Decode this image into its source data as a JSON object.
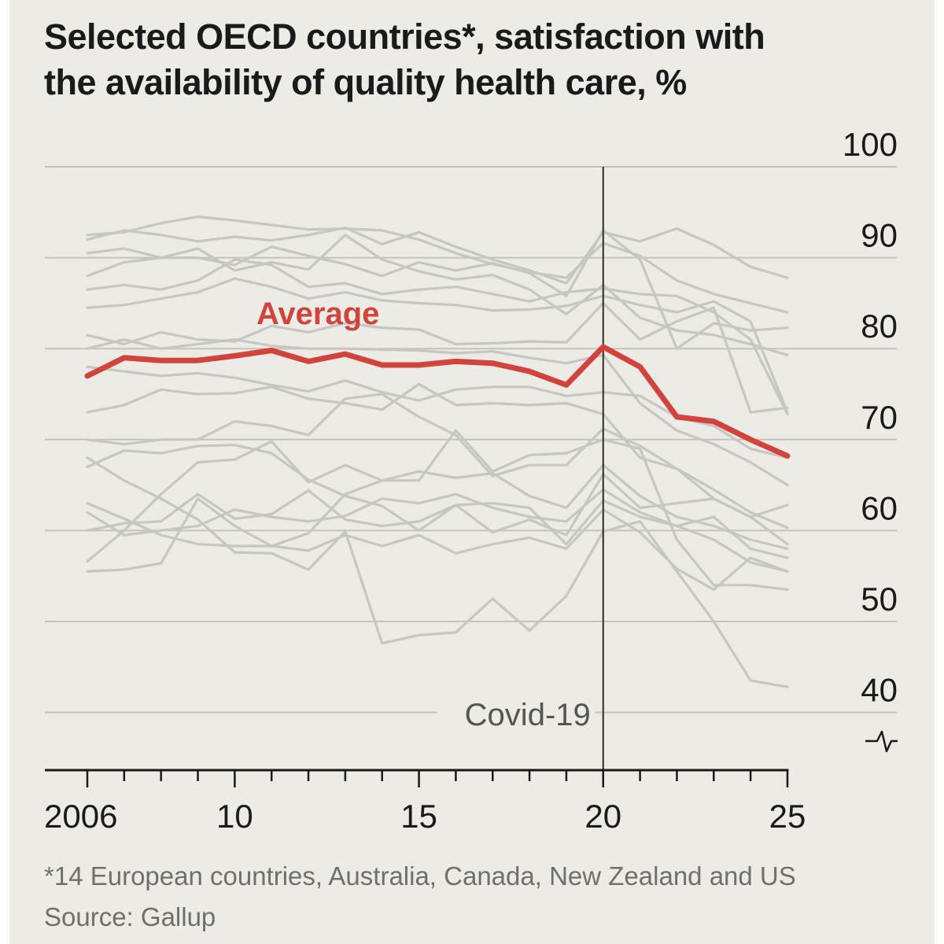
{
  "title": {
    "line1": "Selected OECD countries*, satisfaction with",
    "line2": "the availability of quality health care, %"
  },
  "footnote": {
    "note": "*14 European countries, Australia, Canada, New Zealand and US",
    "source": "Source: Gallup"
  },
  "colors": {
    "background": "#ecebe6",
    "average": "#d2433c",
    "countries": "#c6c6c3",
    "grid": "#c4c3be",
    "axis": "#1a1a1a"
  },
  "chart_data": {
    "type": "line",
    "title": "Selected OECD countries*, satisfaction with the availability of quality health care, %",
    "x": [
      2006,
      2007,
      2008,
      2009,
      2010,
      2011,
      2012,
      2013,
      2014,
      2015,
      2016,
      2017,
      2018,
      2019,
      2020,
      2021,
      2022,
      2023,
      2024,
      2025
    ],
    "x_tick_labels": [
      "2006",
      "10",
      "15",
      "20",
      "25"
    ],
    "x_tick_values": [
      2006,
      2010,
      2015,
      2020,
      2025
    ],
    "y_tick_labels": [
      "100",
      "90",
      "80",
      "70",
      "60",
      "50",
      "40"
    ],
    "y_tick_values": [
      100,
      90,
      80,
      70,
      60,
      50,
      40
    ],
    "ylim": [
      40,
      100
    ],
    "y_axis_broken": true,
    "grid": true,
    "annotation": {
      "label": "Covid-19",
      "x": 2020
    },
    "average": {
      "name": "Average",
      "values": [
        77,
        79,
        78.7,
        78.7,
        79.2,
        79.8,
        78.6,
        79.4,
        78.2,
        78.2,
        78.6,
        78.4,
        77.5,
        76,
        80.2,
        78,
        72.5,
        72,
        70,
        68.2
      ]
    },
    "series": [
      {
        "values": [
          92,
          93,
          92.5,
          91.8,
          92.3,
          91.9,
          92.5,
          93.3,
          91.5,
          92.8,
          91.2,
          89.8,
          88.6,
          87.2,
          92.8,
          91.8,
          93.2,
          91.4,
          89,
          87.8
        ]
      },
      {
        "values": [
          92.5,
          92.8,
          93.8,
          94.5,
          94.1,
          93.6,
          93.1,
          93.2,
          93,
          92,
          90.5,
          89.3,
          88.4,
          87.8,
          91.6,
          90.2,
          87.5,
          86,
          85,
          84
        ]
      },
      {
        "values": [
          90.5,
          91,
          90,
          90,
          89.2,
          91.2,
          90.2,
          89.3,
          88,
          89.5,
          88.6,
          89.4,
          88.3,
          85.8,
          93,
          89.8,
          80,
          82.8,
          82,
          82.3
        ]
      },
      {
        "values": [
          88,
          89.5,
          90,
          91,
          88.6,
          89.5,
          88.7,
          92.5,
          89.8,
          88.5,
          87.6,
          88.1,
          86.5,
          83.8,
          87,
          83.4,
          82,
          81.5,
          80.5,
          79.3
        ]
      },
      {
        "values": [
          86.5,
          87,
          86.5,
          87.5,
          89.8,
          89.2,
          86.8,
          87.2,
          86,
          86.5,
          86.8,
          86,
          85.2,
          86.2,
          86.6,
          86,
          85.8,
          84,
          81,
          72.8
        ]
      },
      {
        "values": [
          84.5,
          84.8,
          85.5,
          86.2,
          87.7,
          86.8,
          85.5,
          86.2,
          85.3,
          85,
          84.8,
          84.2,
          84.3,
          84.7,
          85.8,
          84.8,
          84,
          85.2,
          83,
          73
        ]
      },
      {
        "values": [
          81.5,
          80.5,
          81.8,
          81,
          80.8,
          82.5,
          81.8,
          82.8,
          82.3,
          82.1,
          80.5,
          80.6,
          80.8,
          80.7,
          85,
          81,
          83,
          84.5,
          73,
          73.5
        ]
      },
      {
        "values": [
          80,
          81,
          80,
          80.5,
          81,
          80.3,
          80,
          80,
          79.9,
          79.8,
          79.5,
          79.7,
          79,
          78.4,
          79.3,
          74,
          71,
          69.5,
          67.5,
          65
        ]
      },
      {
        "values": [
          78,
          77.5,
          77,
          77.3,
          76.8,
          76,
          75.3,
          76.5,
          75.2,
          74.3,
          75.5,
          75.8,
          75.8,
          74.8,
          75.2,
          74.8,
          72.5,
          71.5,
          69,
          68
        ]
      },
      {
        "values": [
          73,
          73.8,
          75.5,
          75,
          75.1,
          75.8,
          74.5,
          74,
          73.3,
          76.1,
          73.8,
          74,
          73.8,
          74,
          72.8,
          68,
          66.8,
          64.5,
          62,
          60.3
        ]
      },
      {
        "values": [
          70,
          69.5,
          70,
          70,
          72,
          71.5,
          70.5,
          74.5,
          75,
          72.5,
          70.5,
          66,
          67.2,
          67.2,
          71.2,
          69.3,
          66.8,
          63.5,
          61.5,
          58.5
        ]
      },
      {
        "values": [
          68,
          65.5,
          63.5,
          61.2,
          57.6,
          57.5,
          55.7,
          59.9,
          47.6,
          48.5,
          48.8,
          52.5,
          49,
          52.8,
          59.9,
          61,
          55.5,
          50,
          43.5,
          42.8
        ]
      },
      {
        "values": [
          56.6,
          60,
          64,
          67.5,
          67.8,
          69.8,
          65.3,
          67.2,
          65.5,
          66.5,
          65.8,
          66.3,
          63.8,
          62.5,
          67.2,
          63.8,
          61.5,
          60.5,
          59,
          58
        ]
      },
      {
        "values": [
          60,
          60.8,
          61,
          64,
          61.3,
          61.8,
          64.4,
          61.2,
          60.5,
          61,
          62.8,
          63,
          62.5,
          58.5,
          63.3,
          61.5,
          60.5,
          61.5,
          58,
          57
        ]
      },
      {
        "values": [
          63,
          61.3,
          59.5,
          58.5,
          58.3,
          58.3,
          57.8,
          59.5,
          58.3,
          59.5,
          57.5,
          58.5,
          59.2,
          58,
          62.3,
          59.8,
          55.8,
          53.5,
          57,
          55.5
        ]
      },
      {
        "values": [
          55.5,
          55.7,
          56.4,
          63.5,
          60.5,
          58.3,
          59.7,
          64,
          65.5,
          65.5,
          71,
          66.5,
          68.3,
          68.5,
          70,
          69,
          59,
          54,
          54,
          53.5
        ]
      },
      {
        "values": [
          67,
          68.8,
          68.5,
          69.3,
          69.4,
          68.5,
          65.6,
          63.8,
          62.7,
          60,
          62.8,
          59.8,
          61.2,
          59.5,
          66.2,
          62.5,
          63,
          63.5,
          61.5,
          62.8
        ]
      },
      {
        "values": [
          62,
          59.5,
          60,
          60.5,
          62.3,
          61.5,
          61,
          61.6,
          63.5,
          63,
          64,
          62.5,
          61.5,
          61,
          64.5,
          62,
          60.5,
          59,
          56.5,
          55.5
        ]
      }
    ]
  }
}
